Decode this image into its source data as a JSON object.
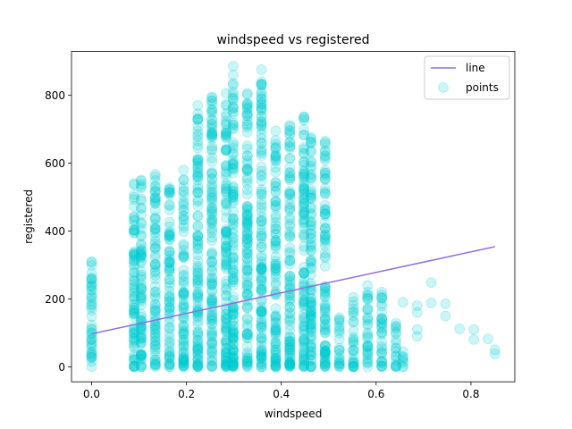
{
  "chart_data": {
    "type": "scatter",
    "title": "windspeed vs registered",
    "xlabel": "windspeed",
    "ylabel": "registered",
    "xlim": [
      -0.0425,
      0.8925
    ],
    "ylim": [
      -44.25,
      929.25
    ],
    "xticks": [
      0.0,
      0.2,
      0.4,
      0.6,
      0.8
    ],
    "xtick_labels": [
      "0.0",
      "0.2",
      "0.4",
      "0.6",
      "0.8"
    ],
    "yticks": [
      0,
      200,
      400,
      600,
      800
    ],
    "ytick_labels": [
      "0",
      "200",
      "400",
      "600",
      "800"
    ],
    "grid": false,
    "legend_position": "top-right",
    "series": [
      {
        "name": "line",
        "kind": "line",
        "color": "#9370db",
        "x": [
          0.0,
          0.8507
        ],
        "y": [
          97,
          354
        ]
      },
      {
        "name": "points",
        "kind": "scatter",
        "color": "#00ced1",
        "alpha": 0.2,
        "columns": [
          {
            "x": 0.0,
            "min": 0,
            "max": 310
          },
          {
            "x": 0.0896,
            "min": 0,
            "max": 540
          },
          {
            "x": 0.1045,
            "min": 0,
            "max": 550
          },
          {
            "x": 0.1343,
            "min": 0,
            "max": 567
          },
          {
            "x": 0.1642,
            "min": 0,
            "max": 528
          },
          {
            "x": 0.194,
            "min": 0,
            "max": 580
          },
          {
            "x": 0.2239,
            "min": 0,
            "max": 770
          },
          {
            "x": 0.2537,
            "min": 0,
            "max": 795
          },
          {
            "x": 0.2836,
            "min": 0,
            "max": 806
          },
          {
            "x": 0.2985,
            "min": 0,
            "max": 886
          },
          {
            "x": 0.3284,
            "min": 0,
            "max": 806
          },
          {
            "x": 0.3582,
            "min": 0,
            "max": 876
          },
          {
            "x": 0.3881,
            "min": 0,
            "max": 695
          },
          {
            "x": 0.4179,
            "min": 0,
            "max": 712
          },
          {
            "x": 0.4478,
            "min": 0,
            "max": 737
          },
          {
            "x": 0.4627,
            "min": 0,
            "max": 676
          },
          {
            "x": 0.4925,
            "min": 0,
            "max": 665
          },
          {
            "x": 0.5224,
            "min": 0,
            "max": 145
          },
          {
            "x": 0.5522,
            "min": 0,
            "max": 205
          },
          {
            "x": 0.5821,
            "min": 0,
            "max": 220
          },
          {
            "x": 0.6119,
            "min": 0,
            "max": 220
          },
          {
            "x": 0.6418,
            "min": 0,
            "max": 120
          },
          {
            "x": 0.6567,
            "min": 0,
            "max": 45
          }
        ],
        "outliers": [
          {
            "x": 0.5821,
            "y": 240
          },
          {
            "x": 0.6119,
            "y": 125
          },
          {
            "x": 0.6418,
            "y": 128
          },
          {
            "x": 0.6567,
            "y": 190
          },
          {
            "x": 0.6866,
            "y": 180
          },
          {
            "x": 0.6866,
            "y": 160
          },
          {
            "x": 0.6866,
            "y": 110
          },
          {
            "x": 0.6866,
            "y": 90
          },
          {
            "x": 0.7164,
            "y": 248
          },
          {
            "x": 0.7164,
            "y": 188
          },
          {
            "x": 0.7463,
            "y": 186
          },
          {
            "x": 0.7463,
            "y": 150
          },
          {
            "x": 0.7761,
            "y": 112
          },
          {
            "x": 0.806,
            "y": 110
          },
          {
            "x": 0.806,
            "y": 80
          },
          {
            "x": 0.8358,
            "y": 82
          },
          {
            "x": 0.8507,
            "y": 50
          },
          {
            "x": 0.8507,
            "y": 38
          },
          {
            "x": 0.6567,
            "y": 30
          },
          {
            "x": 0.6119,
            "y": 60
          }
        ]
      }
    ]
  }
}
